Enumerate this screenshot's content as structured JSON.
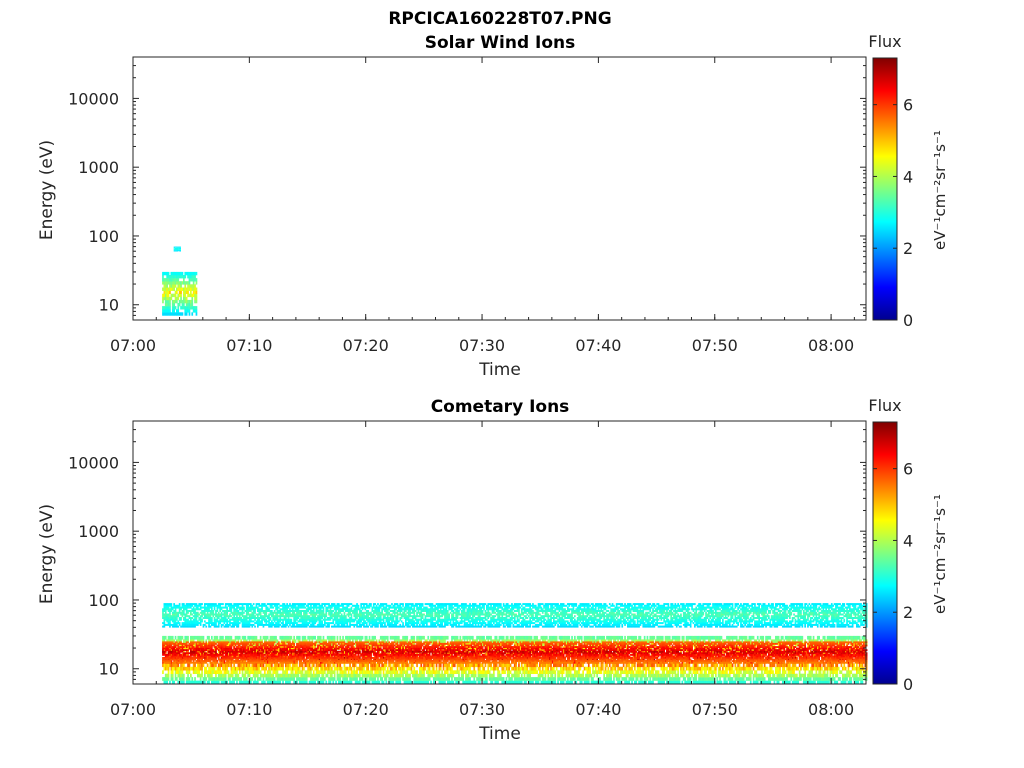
{
  "figure_title": "RPCICA160228T07.PNG",
  "chart_data": [
    {
      "type": "heatmap",
      "title": "Solar Wind Ions",
      "xlabel": "Time",
      "ylabel": "Energy (eV)",
      "y_scale": "log",
      "xlim": [
        "07:00",
        "08:03"
      ],
      "ylim": [
        6,
        40000
      ],
      "xticks": [
        "07:00",
        "07:10",
        "07:20",
        "07:30",
        "07:40",
        "07:50",
        "08:00"
      ],
      "yticks": [
        "10",
        "100",
        "1000",
        "10000"
      ],
      "colorbar": {
        "title": "Flux",
        "label": "eV⁻¹cm⁻²sr⁻¹s⁻¹",
        "range": [
          0,
          7.3
        ],
        "ticks": [
          "0",
          "2",
          "4",
          "6"
        ],
        "colormap": "jet"
      },
      "grid": false,
      "regions": [
        {
          "t_start": "07:02.5",
          "t_end": "07:05.5",
          "energy_low": 7,
          "energy_high": 30,
          "flux": [
            2.5,
            5
          ]
        },
        {
          "t_start": "07:03.5",
          "t_end": "07:04",
          "energy_low": 60,
          "energy_high": 70,
          "flux": [
            2.5,
            3
          ]
        }
      ]
    },
    {
      "type": "heatmap",
      "title": "Cometary Ions",
      "xlabel": "Time",
      "ylabel": "Energy (eV)",
      "y_scale": "log",
      "xlim": [
        "07:00",
        "08:03"
      ],
      "ylim": [
        6,
        40000
      ],
      "xticks": [
        "07:00",
        "07:10",
        "07:20",
        "07:30",
        "07:40",
        "07:50",
        "08:00"
      ],
      "yticks": [
        "10",
        "100",
        "1000",
        "10000"
      ],
      "colorbar": {
        "title": "Flux",
        "label": "eV⁻¹cm⁻²sr⁻¹s⁻¹",
        "range": [
          0,
          7.3
        ],
        "ticks": [
          "0",
          "2",
          "4",
          "6"
        ],
        "colormap": "jet"
      },
      "grid": false,
      "regions": [
        {
          "t_start": "07:02.5",
          "t_end": "08:03",
          "energy_low": 6,
          "energy_high": 30,
          "flux": [
            3,
            7
          ]
        },
        {
          "t_start": "07:02.5",
          "t_end": "08:03",
          "energy_low": 12,
          "energy_high": 25,
          "flux": [
            5.5,
            7
          ]
        },
        {
          "t_start": "07:02.5",
          "t_end": "08:03",
          "energy_low": 40,
          "energy_high": 90,
          "flux": [
            2.5,
            3.5
          ]
        }
      ]
    }
  ]
}
